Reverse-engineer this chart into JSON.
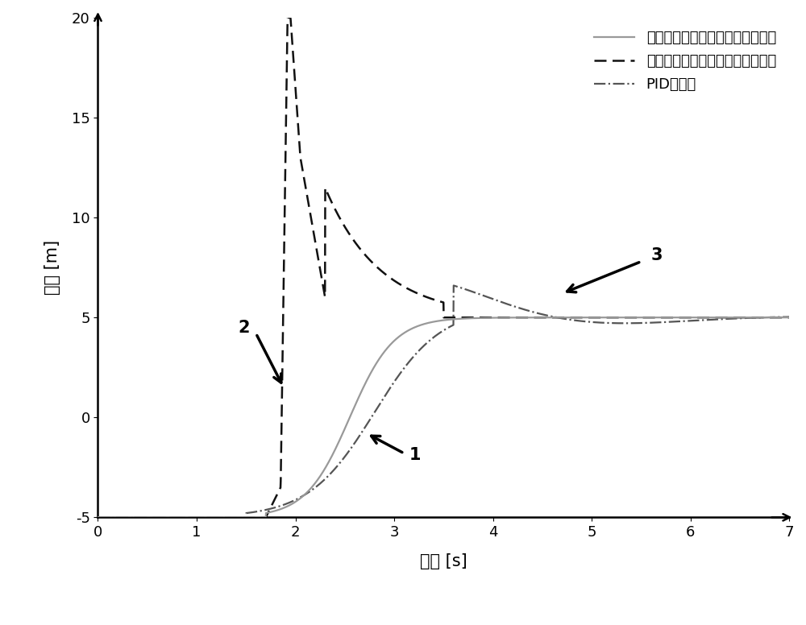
{
  "xlabel": "时间 [s]",
  "ylabel": "高度 [m]",
  "xlim": [
    0,
    7
  ],
  "ylim": [
    -5,
    20
  ],
  "xticks": [
    0,
    1,
    2,
    3,
    4,
    5,
    6,
    7
  ],
  "yticks": [
    -5,
    0,
    5,
    10,
    15,
    20
  ],
  "legend_labels": [
    "具有测地高度的校正的仿射调节器",
    "没有测地高度的校正的仿射调节器",
    "PID调节器"
  ],
  "line1_color": "#999999",
  "line2_color": "#111111",
  "line3_color": "#555555",
  "background_color": "#ffffff",
  "label1": "1",
  "label2": "2",
  "label3": "3",
  "fontsize_legend": 13,
  "fontsize_labels": 15,
  "fontsize_ticks": 13,
  "fontsize_annotations": 15
}
